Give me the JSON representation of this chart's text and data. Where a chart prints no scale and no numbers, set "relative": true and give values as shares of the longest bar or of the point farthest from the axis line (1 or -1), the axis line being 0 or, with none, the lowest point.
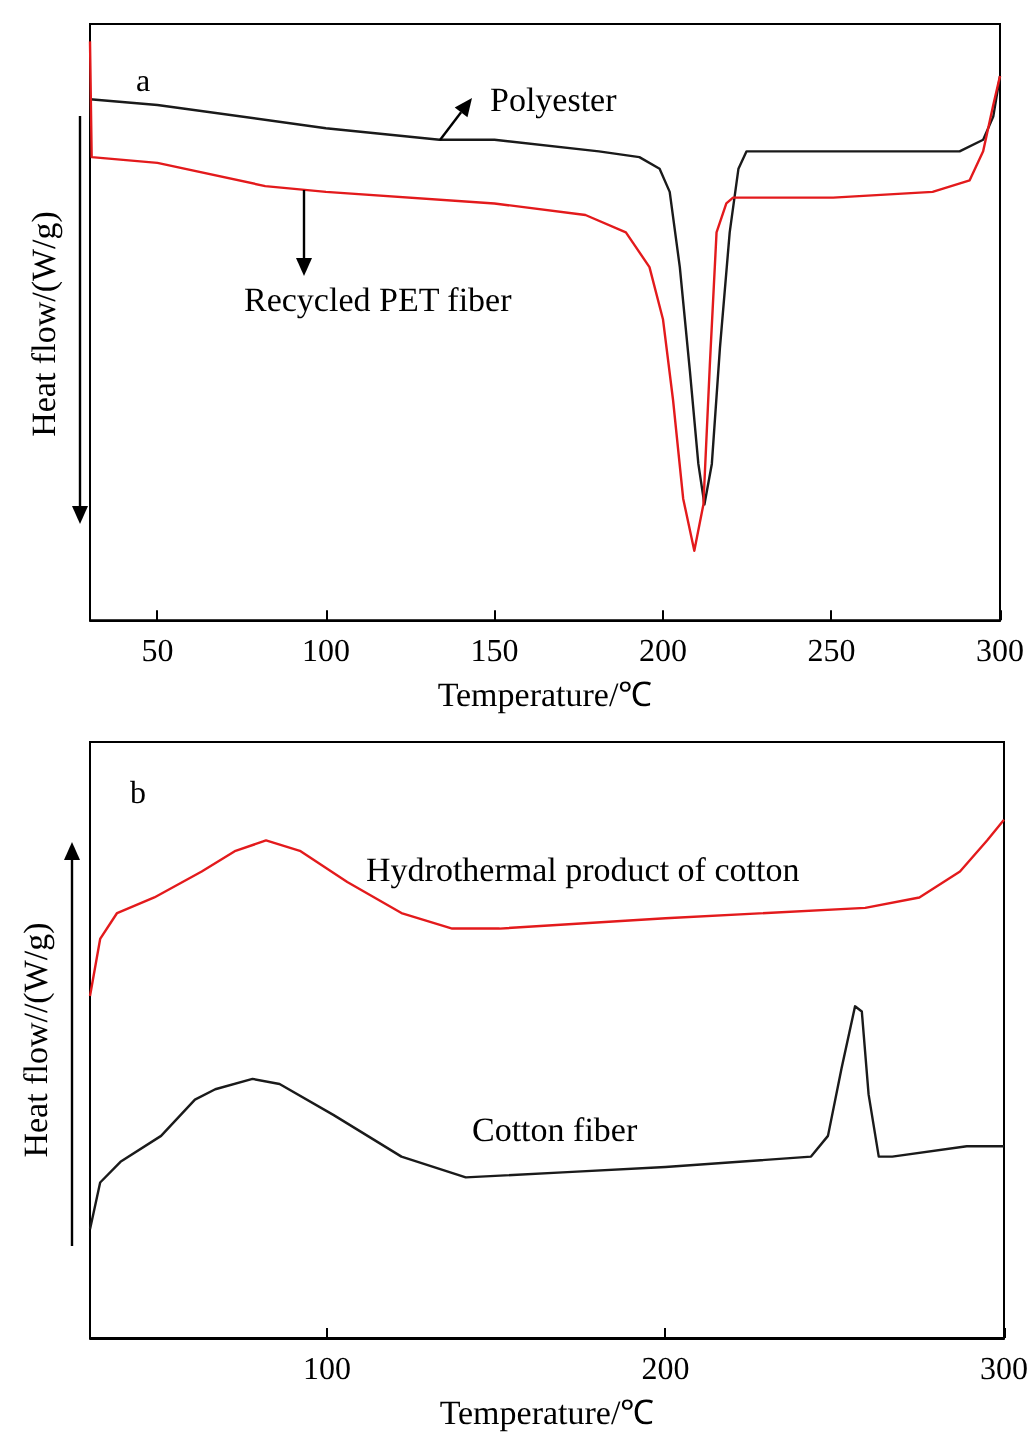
{
  "chart_data": [
    {
      "type": "line",
      "relative": true,
      "xlabel": "Temperature/℃",
      "ylabel": "Heat flow/(W/g)",
      "xlim": [
        30,
        300
      ],
      "xticks": [
        50,
        100,
        150,
        200,
        250,
        300
      ],
      "tick_labels": "x",
      "marker": "none",
      "annotations": [
        "a"
      ],
      "series": [
        {
          "name": "Polyester",
          "color": "#1a1a1a",
          "x": [
            30,
            50,
            100,
            133.7,
            150,
            181,
            193,
            199,
            202,
            205,
            208,
            210.5,
            212.3,
            214.5,
            216.9,
            219.8,
            222.4,
            224.8,
            250.5,
            288,
            295,
            298,
            300
          ],
          "values": [
            0.9,
            0.89,
            0.85,
            0.83,
            0.83,
            0.81,
            0.8,
            0.78,
            0.74,
            0.61,
            0.43,
            0.27,
            0.2,
            0.27,
            0.47,
            0.67,
            0.78,
            0.81,
            0.81,
            0.81,
            0.83,
            0.87,
            0.94
          ]
        },
        {
          "name": "Recycled PET fiber",
          "color": "#e31a1c",
          "x": [
            30,
            30.5,
            50,
            82,
            100,
            150,
            177,
            189,
            196,
            200,
            203,
            206,
            209.3,
            212,
            213.9,
            215.9,
            218.8,
            220.8,
            250.5,
            280,
            291,
            295,
            298,
            300
          ],
          "values": [
            1,
            0.8,
            0.79,
            0.75,
            0.74,
            0.72,
            0.7,
            0.67,
            0.61,
            0.52,
            0.38,
            0.21,
            0.12,
            0.2,
            0.44,
            0.67,
            0.72,
            0.73,
            0.73,
            0.74,
            0.76,
            0.81,
            0.89,
            0.94
          ]
        }
      ]
    },
    {
      "type": "line",
      "relative": true,
      "xlabel": "Temperature/℃",
      "ylabel": "Heat flow//(W/g)",
      "xlim": [
        30,
        300
      ],
      "xticks": [
        100,
        200,
        300
      ],
      "tick_labels": "x",
      "marker": "none",
      "annotations": [
        "b"
      ],
      "series": [
        {
          "name": "Hydrothermal product of cotton",
          "color": "#e31a1c",
          "x": [
            30,
            33,
            38,
            49,
            63,
            73,
            82,
            92,
            106,
            122,
            137,
            151,
            200,
            259,
            275,
            287,
            295,
            300
          ],
          "values": [
            0.66,
            0.77,
            0.82,
            0.85,
            0.9,
            0.94,
            0.96,
            0.94,
            0.88,
            0.82,
            0.79,
            0.79,
            0.81,
            0.83,
            0.85,
            0.9,
            0.96,
            1
          ]
        },
        {
          "name": "Cotton fiber",
          "color": "#1a1a1a",
          "x": [
            30,
            33,
            39,
            51,
            61,
            67,
            78,
            86,
            102,
            122,
            141,
            171,
            200,
            243,
            248,
            252,
            256,
            258,
            260,
            263,
            267,
            289,
            300
          ],
          "values": [
            0.21,
            0.3,
            0.34,
            0.39,
            0.46,
            0.48,
            0.5,
            0.49,
            0.43,
            0.35,
            0.31,
            0.32,
            0.33,
            0.35,
            0.39,
            0.52,
            0.64,
            0.63,
            0.47,
            0.35,
            0.35,
            0.37,
            0.37
          ]
        }
      ]
    }
  ]
}
